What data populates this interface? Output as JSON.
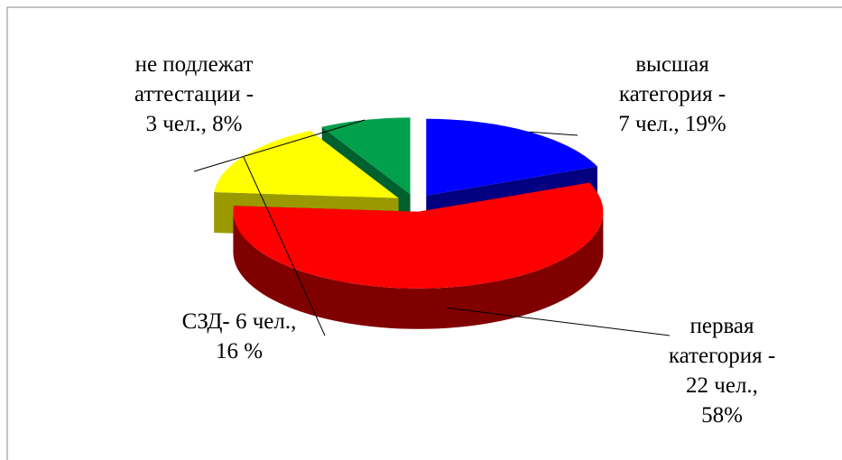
{
  "chart_data": {
    "type": "pie",
    "values": [
      19,
      58,
      16,
      8
    ],
    "value_labels": [
      "высшая\nкатегория -\n7  чел., 19%",
      "первая\nкатегория -\n22 чел.,\n58%",
      "СЗД- 6 чел.,\n16 %",
      "не подлежат\nаттестации -\n3 чел., 8%"
    ],
    "colors": [
      "#0000ff",
      "#ff0000",
      "#ffff00",
      "#00a04c"
    ],
    "side_colors": [
      "#000080",
      "#800000",
      "#9a9a00",
      "#00602e"
    ]
  }
}
